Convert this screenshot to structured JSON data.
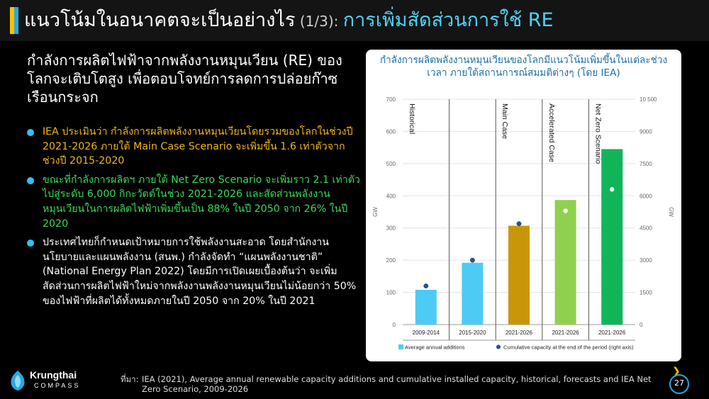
{
  "slide": {
    "title_main": "แนวโน้มในอนาคตจะเป็นอย่างไร",
    "title_part": " (1/3): ",
    "title_topic": "การเพิ่มสัดส่วนการใช้ RE",
    "headline": "กำลังการผลิตไฟฟ้าจากพลังงานหมุนเวียน (RE) ของโลกจะเติบโตสูง เพื่อตอบโจทย์การลดการปล่อยก๊าซเรือนกระจก",
    "bullets": [
      "IEA ประเมินว่า กำลังการผลิตพลังงานหมุนเวียนโดยรวมของโลกในช่วงปี 2021-2026 ภายใต้ Main Case Scenario จะเพิ่มขึ้น 1.6 เท่าตัวจากช่วงปี 2015-2020",
      "ขณะที่กำลังการผลิตฯ ภายใต้ Net Zero Scenario จะเพิ่มราว 2.1 เท่าตัว ไปสู่ระดับ 6,000 กิกะวัตต์ในช่วง 2021-2026 และสัดส่วนพลังงานหมุนเวียนในการผลิตไฟฟ้าเพิ่มขึ้นเป็น 88% ในปี 2050 จาก 26% ในปี 2020",
      "ประเทศไทยก็กำหนดเป้าหมายการใช้พลังงานสะอาด โดยสำนักงานนโยบายและแผนพลังงาน (สนพ.) กำลังจัดทำ “แผนพลังงานชาติ” (National Energy Plan 2022) โดยมีการเปิดเผยเบื้องต้นว่า จะเพิ่มสัดส่วนการผลิตไฟฟ้าใหม่จากพลังงานพลังงานหมุนเวียนไม่น้อยกว่า 50% ของไฟฟ้าที่ผลิตได้ทั้งหมดภายในปี 2050 จาก 20% ในปี 2021"
    ],
    "source_label": "ที่มา:",
    "source_text": "IEA (2021), Average annual renewable capacity additions and cumulative installed capacity, historical, forecasts and IEA Net Zero Scenario, 2009-2026",
    "page_number": "27",
    "logo_name": "Krungthai",
    "logo_sub": "COMPASS"
  },
  "colors": {
    "accent_blue": "#2aa8e0",
    "accent_yellow": "#ffc000",
    "bullet_orange": "#f2b41c",
    "bullet_green": "#38d957",
    "title_cyan": "#4fd1f5"
  },
  "chart_data": {
    "type": "bar",
    "title": "กำลังการผลิตพลังงานหมุนเวียนของโลกมีแนวโน้มเพิ่มขึ้นในแต่ละช่วงเวลา ภายใต้สถานการณ์สมมติต่างๆ (โดย IEA)",
    "categories": [
      "2009-2014",
      "2015-2020",
      "2021-2026",
      "2021-2026",
      "2021-2026"
    ],
    "scenario_labels": [
      "Historical",
      "Main Case",
      "Accelerated Case",
      "Net Zero Scenario"
    ],
    "bar_colors": [
      "#4dcbf5",
      "#4dcbf5",
      "#c9960a",
      "#8fd14f",
      "#10b55a"
    ],
    "series": [
      {
        "name": "Average annual additions",
        "axis": "left",
        "values": [
          108,
          192,
          307,
          387,
          545
        ]
      },
      {
        "name": "Cumulative capacity at the end of the period (right axis)",
        "axis": "right",
        "values": [
          1800,
          3000,
          4700,
          5300,
          6300
        ]
      }
    ],
    "ylabel": "GW",
    "ylabel_right": "GW",
    "ylim": [
      0,
      700
    ],
    "yticks": [
      0,
      100,
      200,
      300,
      400,
      500,
      600,
      700
    ],
    "ylim_right": [
      0,
      10500
    ],
    "yticks_right": [
      "0",
      "1500",
      "3000",
      "4500",
      "6000",
      "7500",
      "9000",
      "10 500"
    ],
    "legend_position": "bottom"
  }
}
